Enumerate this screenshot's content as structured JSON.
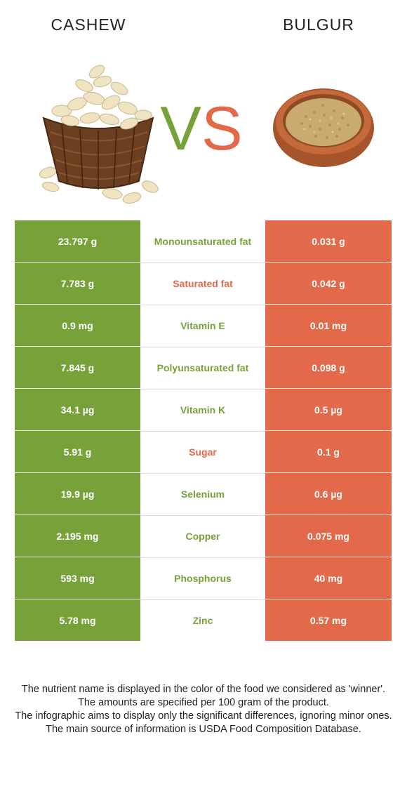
{
  "header": {
    "left_title": "CASHEW",
    "right_title": "BULGUR",
    "vs_v": "V",
    "vs_s": "S"
  },
  "colors": {
    "winner_left": "#77a23a",
    "winner_right": "#e2694a"
  },
  "rows": [
    {
      "left": "23.797 g",
      "nutrient": "Monounsaturated fat",
      "right": "0.031 g",
      "winner": "left"
    },
    {
      "left": "7.783 g",
      "nutrient": "Saturated fat",
      "right": "0.042 g",
      "winner": "right"
    },
    {
      "left": "0.9 mg",
      "nutrient": "Vitamin E",
      "right": "0.01 mg",
      "winner": "left"
    },
    {
      "left": "7.845 g",
      "nutrient": "Polyunsaturated fat",
      "right": "0.098 g",
      "winner": "left"
    },
    {
      "left": "34.1 µg",
      "nutrient": "Vitamin K",
      "right": "0.5 µg",
      "winner": "left"
    },
    {
      "left": "5.91 g",
      "nutrient": "Sugar",
      "right": "0.1 g",
      "winner": "right"
    },
    {
      "left": "19.9 µg",
      "nutrient": "Selenium",
      "right": "0.6 µg",
      "winner": "left"
    },
    {
      "left": "2.195 mg",
      "nutrient": "Copper",
      "right": "0.075 mg",
      "winner": "left"
    },
    {
      "left": "593 mg",
      "nutrient": "Phosphorus",
      "right": "40 mg",
      "winner": "left"
    },
    {
      "left": "5.78 mg",
      "nutrient": "Zinc",
      "right": "0.57 mg",
      "winner": "left"
    }
  ],
  "notes": [
    "The nutrient name is displayed in the color of the food we considered as 'winner'.",
    "The amounts are specified per 100 gram of the product.",
    "The infographic aims to display only the significant differences, ignoring minor ones.",
    "The main source of information is USDA Food Composition Database."
  ]
}
